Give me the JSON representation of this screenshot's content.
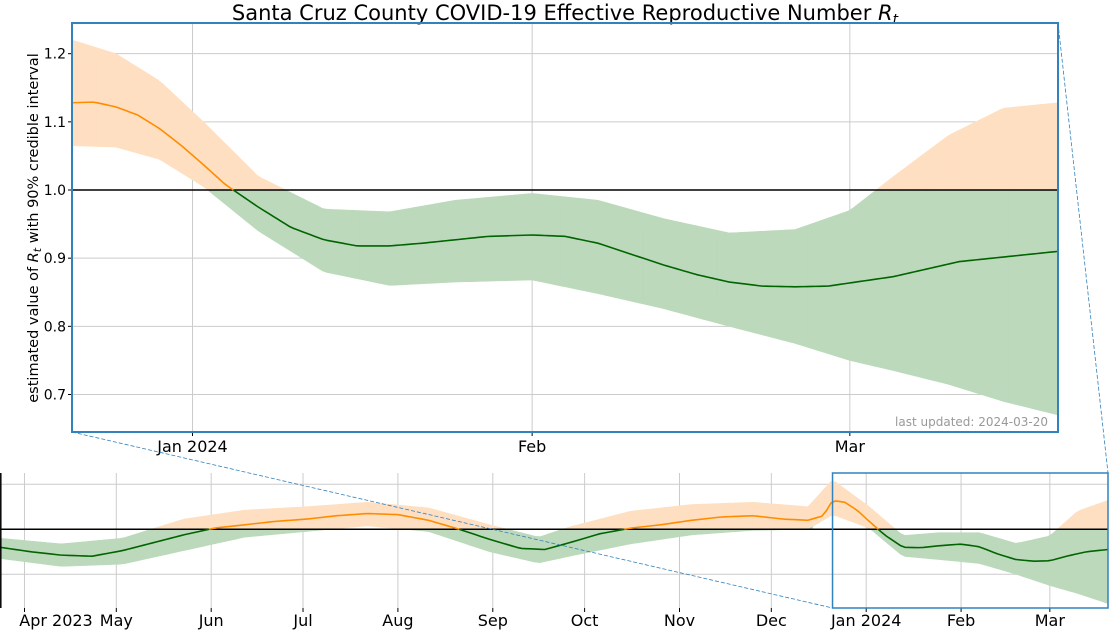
{
  "chart_data": [
    {
      "type": "area",
      "panel": "main",
      "title": "Santa Cruz County COVID-19 Effective Reproductive Number",
      "title_symbol": "R",
      "title_symbol_sub": "t",
      "ylabel_prefix": "estimated value of ",
      "ylabel_symbol": "R",
      "ylabel_symbol_sub": "t",
      "ylabel_suffix": " with 90% credible interval",
      "xlim": [
        "2023-12-21",
        "2024-03-20"
      ],
      "ylim": [
        0.645,
        1.245
      ],
      "xticks": [
        {
          "date": "2024-01-01",
          "label": "Jan 2024"
        },
        {
          "date": "2024-02-01",
          "label": "Feb"
        },
        {
          "date": "2024-03-01",
          "label": "Mar"
        }
      ],
      "yticks": [
        0.7,
        0.8,
        0.9,
        1.0,
        1.1,
        1.2
      ],
      "threshold": 1.0,
      "grid": true,
      "annotation": "last updated: 2024-03-20",
      "series": [
        {
          "role": "median",
          "x": [
            "2023-12-21",
            "2023-12-23",
            "2023-12-25",
            "2023-12-27",
            "2023-12-29",
            "2023-12-31",
            "2024-01-02",
            "2024-01-04",
            "2024-01-07",
            "2024-01-10",
            "2024-01-13",
            "2024-01-16",
            "2024-01-19",
            "2024-01-22",
            "2024-01-25",
            "2024-01-28",
            "2024-02-01",
            "2024-02-04",
            "2024-02-07",
            "2024-02-10",
            "2024-02-13",
            "2024-02-16",
            "2024-02-19",
            "2024-02-22",
            "2024-02-25",
            "2024-02-28",
            "2024-03-02",
            "2024-03-05",
            "2024-03-08",
            "2024-03-11",
            "2024-03-14",
            "2024-03-17",
            "2024-03-20"
          ],
          "y": [
            1.128,
            1.129,
            1.122,
            1.11,
            1.09,
            1.065,
            1.037,
            1.008,
            0.975,
            0.945,
            0.927,
            0.918,
            0.918,
            0.922,
            0.927,
            0.932,
            0.934,
            0.932,
            0.922,
            0.906,
            0.89,
            0.876,
            0.865,
            0.859,
            0.858,
            0.859,
            0.866,
            0.873,
            0.884,
            0.895,
            0.9,
            0.905,
            0.91
          ]
        },
        {
          "role": "lower_90",
          "x": [
            "2023-12-21",
            "2023-12-25",
            "2023-12-29",
            "2024-01-02",
            "2024-01-07",
            "2024-01-13",
            "2024-01-19",
            "2024-01-25",
            "2024-02-01",
            "2024-02-07",
            "2024-02-13",
            "2024-02-19",
            "2024-02-25",
            "2024-03-01",
            "2024-03-05",
            "2024-03-10",
            "2024-03-15",
            "2024-03-20"
          ],
          "y": [
            1.065,
            1.063,
            1.045,
            1.005,
            0.94,
            0.88,
            0.86,
            0.865,
            0.868,
            0.848,
            0.826,
            0.8,
            0.775,
            0.75,
            0.735,
            0.715,
            0.69,
            0.67
          ]
        },
        {
          "role": "upper_90",
          "x": [
            "2023-12-21",
            "2023-12-25",
            "2023-12-29",
            "2024-01-02",
            "2024-01-07",
            "2024-01-13",
            "2024-01-19",
            "2024-01-25",
            "2024-02-01",
            "2024-02-07",
            "2024-02-13",
            "2024-02-19",
            "2024-02-25",
            "2024-03-01",
            "2024-03-05",
            "2024-03-10",
            "2024-03-15",
            "2024-03-20"
          ],
          "y": [
            1.22,
            1.2,
            1.16,
            1.1,
            1.02,
            0.972,
            0.968,
            0.985,
            0.995,
            0.985,
            0.958,
            0.937,
            0.942,
            0.97,
            1.02,
            1.08,
            1.12,
            1.128
          ]
        }
      ],
      "colors": {
        "above": "#ff8c00",
        "above_band": "#ffdfc1",
        "below": "#006400",
        "below_band": "#bcd9bc",
        "frame": "#3182bd"
      }
    },
    {
      "type": "area",
      "panel": "overview",
      "xlim": [
        "2023-03-24",
        "2024-03-20"
      ],
      "ylim": [
        0.65,
        1.25
      ],
      "xticks": [
        {
          "date": "2023-04-01",
          "label": "Apr 2023"
        },
        {
          "date": "2023-05-01",
          "label": "May"
        },
        {
          "date": "2023-06-01",
          "label": "Jun"
        },
        {
          "date": "2023-07-01",
          "label": "Jul"
        },
        {
          "date": "2023-08-01",
          "label": "Aug"
        },
        {
          "date": "2023-09-01",
          "label": "Sep"
        },
        {
          "date": "2023-10-01",
          "label": "Oct"
        },
        {
          "date": "2023-11-01",
          "label": "Nov"
        },
        {
          "date": "2023-12-01",
          "label": "Dec"
        },
        {
          "date": "2024-01-01",
          "label": "Jan 2024"
        },
        {
          "date": "2024-02-01",
          "label": "Feb"
        },
        {
          "date": "2024-03-01",
          "label": "Mar"
        }
      ],
      "yticks": [
        0.8,
        1.0,
        1.2
      ],
      "threshold": 1.0,
      "grid": true,
      "series": [
        {
          "role": "median",
          "x": [
            "2023-03-24",
            "2023-04-03",
            "2023-04-13",
            "2023-04-23",
            "2023-05-03",
            "2023-05-13",
            "2023-05-23",
            "2023-06-02",
            "2023-06-12",
            "2023-06-22",
            "2023-07-02",
            "2023-07-12",
            "2023-07-22",
            "2023-08-01",
            "2023-08-11",
            "2023-08-21",
            "2023-08-31",
            "2023-09-10",
            "2023-09-18",
            "2023-09-26",
            "2023-10-06",
            "2023-10-16",
            "2023-10-26",
            "2023-11-05",
            "2023-11-15",
            "2023-11-25",
            "2023-12-05",
            "2023-12-13",
            "2023-12-18",
            "2023-12-21",
            "2023-12-25",
            "2023-12-29",
            "2024-01-02",
            "2024-01-07",
            "2024-01-13",
            "2024-01-19",
            "2024-01-25",
            "2024-02-01",
            "2024-02-07",
            "2024-02-13",
            "2024-02-19",
            "2024-02-25",
            "2024-03-01",
            "2024-03-07",
            "2024-03-13",
            "2024-03-20"
          ],
          "y": [
            0.92,
            0.9,
            0.885,
            0.88,
            0.905,
            0.94,
            0.975,
            1.005,
            1.02,
            1.035,
            1.045,
            1.06,
            1.07,
            1.065,
            1.04,
            1.0,
            0.955,
            0.915,
            0.91,
            0.94,
            0.98,
            1.005,
            1.02,
            1.04,
            1.055,
            1.06,
            1.045,
            1.04,
            1.06,
            1.128,
            1.12,
            1.085,
            1.035,
            0.975,
            0.92,
            0.918,
            0.927,
            0.934,
            0.922,
            0.89,
            0.865,
            0.858,
            0.86,
            0.882,
            0.9,
            0.91
          ]
        },
        {
          "role": "lower_90",
          "x": [
            "2023-03-24",
            "2023-04-13",
            "2023-05-03",
            "2023-05-23",
            "2023-06-12",
            "2023-07-02",
            "2023-07-22",
            "2023-08-11",
            "2023-08-31",
            "2023-09-16",
            "2023-09-26",
            "2023-10-16",
            "2023-11-05",
            "2023-11-25",
            "2023-12-13",
            "2023-12-21",
            "2024-01-02",
            "2024-01-13",
            "2024-01-25",
            "2024-02-07",
            "2024-02-19",
            "2024-03-01",
            "2024-03-10",
            "2024-03-20"
          ],
          "y": [
            0.87,
            0.835,
            0.845,
            0.905,
            0.965,
            0.99,
            1.015,
            0.99,
            0.9,
            0.85,
            0.88,
            0.935,
            0.975,
            0.995,
            1.0,
            1.065,
            1.005,
            0.88,
            0.865,
            0.848,
            0.8,
            0.75,
            0.715,
            0.67
          ]
        },
        {
          "role": "upper_90",
          "x": [
            "2023-03-24",
            "2023-04-13",
            "2023-05-03",
            "2023-05-23",
            "2023-06-12",
            "2023-07-02",
            "2023-07-22",
            "2023-08-11",
            "2023-08-31",
            "2023-09-16",
            "2023-09-26",
            "2023-10-16",
            "2023-11-05",
            "2023-11-25",
            "2023-12-13",
            "2023-12-21",
            "2024-01-02",
            "2024-01-13",
            "2024-01-25",
            "2024-02-07",
            "2024-02-19",
            "2024-03-01",
            "2024-03-10",
            "2024-03-20"
          ],
          "y": [
            0.96,
            0.935,
            0.96,
            1.045,
            1.085,
            1.1,
            1.12,
            1.095,
            1.02,
            0.965,
            1.01,
            1.08,
            1.11,
            1.12,
            1.1,
            1.22,
            1.1,
            0.972,
            0.985,
            0.985,
            0.937,
            0.97,
            1.08,
            1.128
          ]
        }
      ]
    }
  ]
}
